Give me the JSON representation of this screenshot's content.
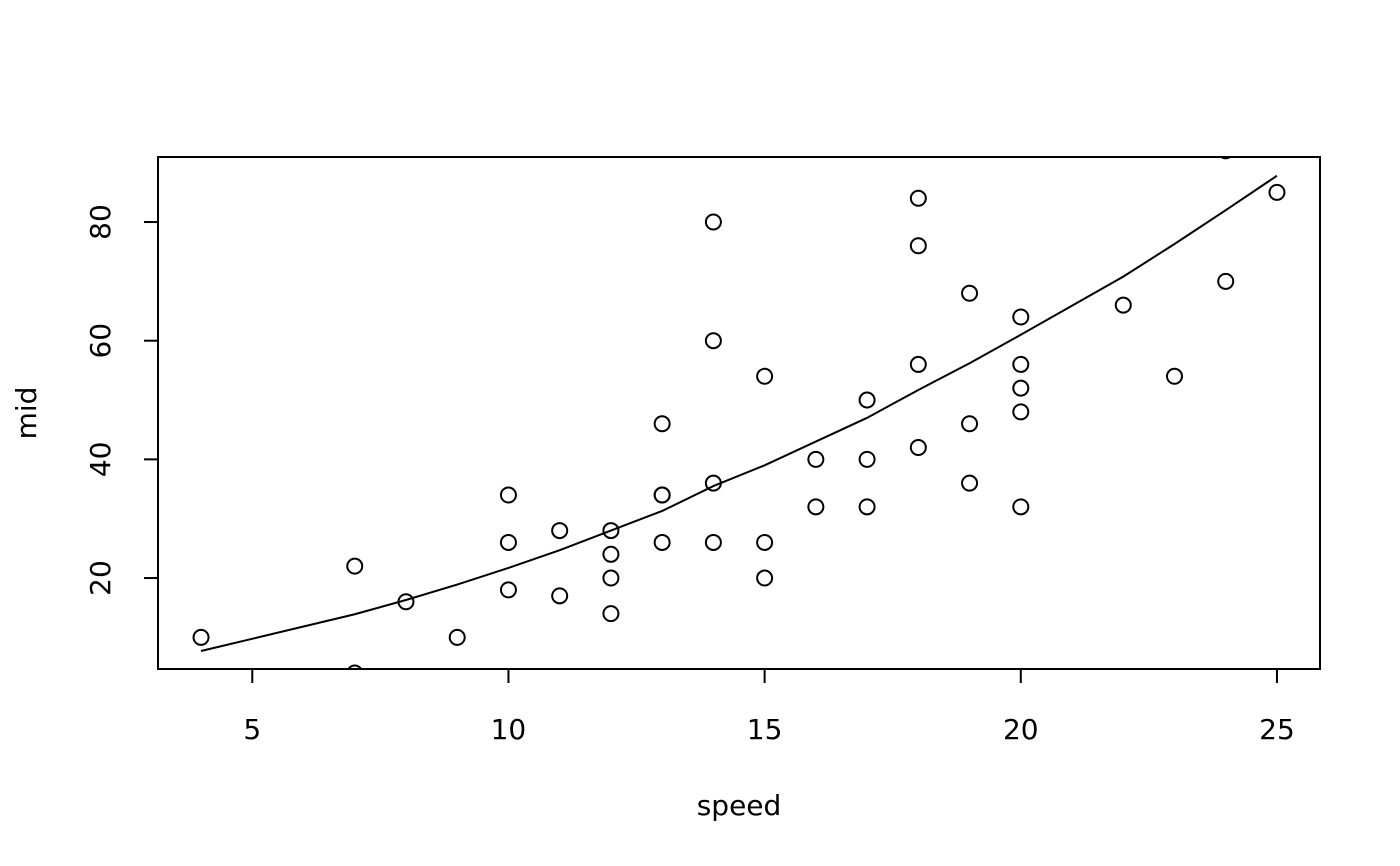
{
  "chart_data": {
    "type": "scatter",
    "x_label": "speed",
    "y_label": "mid",
    "xlim": [
      3.16,
      25.84
    ],
    "ylim": [
      4.67,
      90.96
    ],
    "xticks": [
      5,
      10,
      15,
      20,
      25
    ],
    "yticks": [
      20,
      40,
      60,
      80
    ],
    "color": "#000000",
    "points": {
      "x": [
        4,
        7,
        7,
        8,
        9,
        10,
        10,
        10,
        11,
        11,
        12,
        12,
        12,
        12,
        13,
        13,
        13,
        13,
        14,
        14,
        14,
        14,
        15,
        15,
        15,
        16,
        16,
        17,
        17,
        17,
        18,
        18,
        18,
        18,
        19,
        19,
        19,
        20,
        20,
        20,
        20,
        20,
        22,
        23,
        24,
        24,
        25
      ],
      "values": [
        10,
        22,
        4,
        16,
        10,
        34,
        26,
        18,
        28,
        17,
        28,
        24,
        20,
        14,
        46,
        34,
        34,
        26,
        80,
        60,
        36,
        26,
        54,
        26,
        20,
        40,
        32,
        50,
        40,
        32,
        84,
        76,
        56,
        42,
        68,
        46,
        36,
        64,
        56,
        52,
        48,
        32,
        66,
        54,
        92,
        70,
        85
      ]
    },
    "line": {
      "x": [
        4,
        7,
        8,
        9,
        10,
        11,
        12,
        13,
        14,
        15,
        16,
        17,
        18,
        19,
        20,
        22,
        23,
        24,
        25
      ],
      "values": [
        7.7,
        13.9,
        16.3,
        18.9,
        21.7,
        24.7,
        28,
        31.3,
        35.5,
        39,
        43,
        47,
        51.7,
        56.2,
        61,
        70.8,
        76.3,
        82,
        87.8
      ]
    }
  }
}
